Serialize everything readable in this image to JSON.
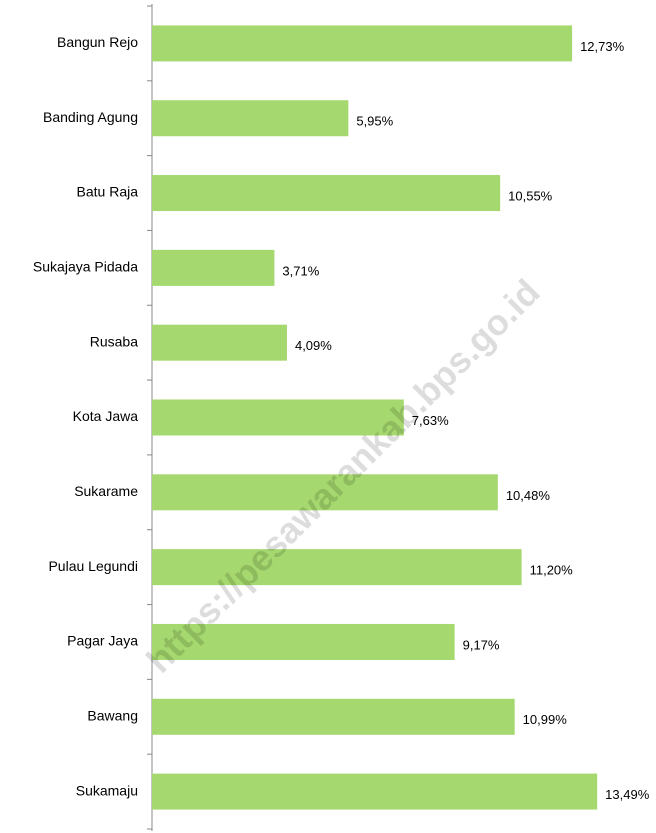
{
  "chart_data": {
    "type": "bar",
    "orientation": "horizontal",
    "categories": [
      "Bangun Rejo",
      "Banding Agung",
      "Batu Raja",
      "Sukajaya Pidada",
      "Rusaba",
      "Kota Jawa",
      "Sukarame",
      "Pulau Legundi",
      "Pagar Jaya",
      "Bawang",
      "Sukamaju"
    ],
    "values": [
      12.73,
      5.95,
      10.55,
      3.71,
      4.09,
      7.63,
      10.48,
      11.2,
      9.17,
      10.99,
      13.49
    ],
    "value_labels": [
      "12,73%",
      "5,95%",
      "10,55%",
      "3,71%",
      "4,09%",
      "7,63%",
      "10,48%",
      "11,20%",
      "9,17%",
      "10,99%",
      "13,49%"
    ],
    "color": "#a5d86e",
    "xlim": [
      0,
      15
    ],
    "watermark": "https://pesawarankab.bps.go.id"
  }
}
